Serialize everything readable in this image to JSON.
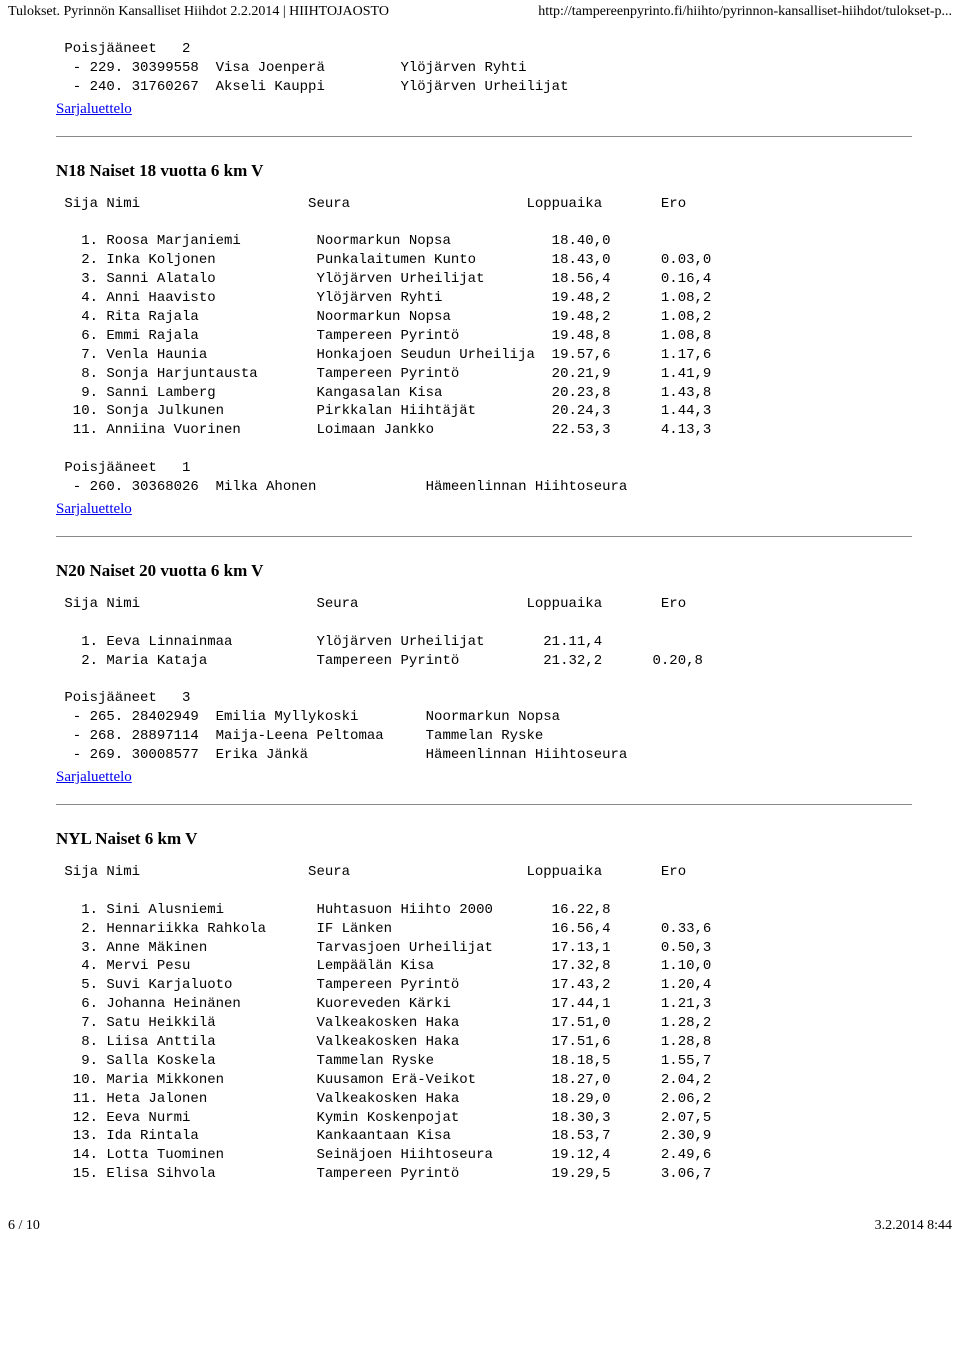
{
  "header": {
    "left": "Tulokset. Pyrinnön Kansalliset Hiihdot 2.2.2014 | HIIHTOJAOSTO",
    "right": "http://tampereenpyrinto.fi/hiihto/pyrinnon-kansalliset-hiihdot/tulokset-p..."
  },
  "footer": {
    "left": "6 / 10",
    "right": "3.2.2014 8:44"
  },
  "link_label": "Sarjaluettelo",
  "block0": {
    "pre": " Poisjääneet   2\n  - 229. 30399558  Visa Joenperä         Ylöjärven Ryhti\n  - 240. 31760267  Akseli Kauppi         Ylöjärven Urheilijat"
  },
  "n18": {
    "title": "N18 Naiset 18 vuotta 6 km V",
    "pre": " Sija Nimi                    Seura                     Loppuaika       Ero\n\n   1. Roosa Marjaniemi         Noormarkun Nopsa            18.40,0\n   2. Inka Koljonen            Punkalaitumen Kunto         18.43,0      0.03,0\n   3. Sanni Alatalo            Ylöjärven Urheilijat        18.56,4      0.16,4\n   4. Anni Haavisto            Ylöjärven Ryhti             19.48,2      1.08,2\n   4. Rita Rajala              Noormarkun Nopsa            19.48,2      1.08,2\n   6. Emmi Rajala              Tampereen Pyrintö           19.48,8      1.08,8\n   7. Venla Haunia             Honkajoen Seudun Urheilija  19.57,6      1.17,6\n   8. Sonja Harjuntausta       Tampereen Pyrintö           20.21,9      1.41,9\n   9. Sanni Lamberg            Kangasalan Kisa             20.23,8      1.43,8\n  10. Sonja Julkunen           Pirkkalan Hiihtäjät         20.24,3      1.44,3\n  11. Anniina Vuorinen         Loimaan Jankko              22.53,3      4.13,3\n\n Poisjääneet   1\n  - 260. 30368026  Milka Ahonen             Hämeenlinnan Hiihtoseura"
  },
  "n20": {
    "title": "N20 Naiset 20 vuotta 6 km V",
    "pre": " Sija Nimi                     Seura                    Loppuaika       Ero\n\n   1. Eeva Linnainmaa          Ylöjärven Urheilijat       21.11,4\n   2. Maria Kataja             Tampereen Pyrintö          21.32,2      0.20,8\n\n Poisjääneet   3\n  - 265. 28402949  Emilia Myllykoski        Noormarkun Nopsa\n  - 268. 28897114  Maija-Leena Peltomaa     Tammelan Ryske\n  - 269. 30008577  Erika Jänkä              Hämeenlinnan Hiihtoseura"
  },
  "nyl": {
    "title": "NYL Naiset 6 km V",
    "pre": " Sija Nimi                    Seura                     Loppuaika       Ero\n\n   1. Sini Alusniemi           Huhtasuon Hiihto 2000       16.22,8\n   2. Hennariikka Rahkola      IF Länken                   16.56,4      0.33,6\n   3. Anne Mäkinen             Tarvasjoen Urheilijat       17.13,1      0.50,3\n   4. Mervi Pesu               Lempäälän Kisa              17.32,8      1.10,0\n   5. Suvi Karjaluoto          Tampereen Pyrintö           17.43,2      1.20,4\n   6. Johanna Heinänen         Kuoreveden Kärki            17.44,1      1.21,3\n   7. Satu Heikkilä            Valkeakosken Haka           17.51,0      1.28,2\n   8. Liisa Anttila            Valkeakosken Haka           17.51,6      1.28,8\n   9. Salla Koskela            Tammelan Ryske              18.18,5      1.55,7\n  10. Maria Mikkonen           Kuusamon Erä-Veikot         18.27,0      2.04,2\n  11. Heta Jalonen             Valkeakosken Haka           18.29,0      2.06,2\n  12. Eeva Nurmi               Kymin Koskenpojat           18.30,3      2.07,5\n  13. Ida Rintala              Kankaantaan Kisa            18.53,7      2.30,9\n  14. Lotta Tuominen           Seinäjoen Hiihtoseura       19.12,4      2.49,6\n  15. Elisa Sihvola            Tampereen Pyrintö           19.29,5      3.06,7"
  }
}
